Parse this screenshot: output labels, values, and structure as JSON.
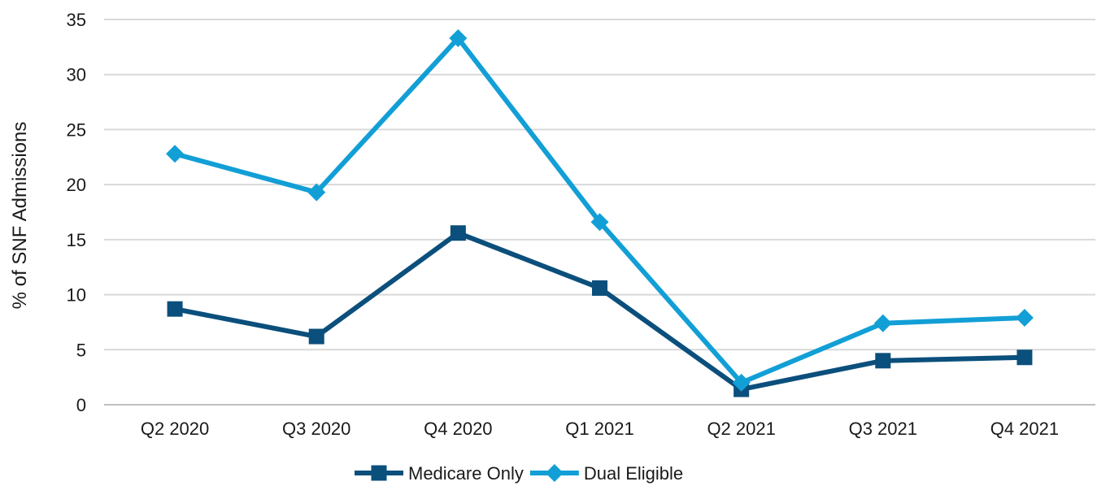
{
  "chart_data": {
    "type": "line",
    "title": "",
    "xlabel": "",
    "ylabel": "% of SNF Admissions",
    "categories": [
      "Q2 2020",
      "Q3 2020",
      "Q4 2020",
      "Q1 2021",
      "Q2 2021",
      "Q3 2021",
      "Q4 2021"
    ],
    "ylim": [
      0,
      35
    ],
    "yticks": [
      0,
      5,
      10,
      15,
      20,
      25,
      30,
      35
    ],
    "grid": true,
    "legend_position": "bottom",
    "series": [
      {
        "name": "Medicare Only",
        "values": [
          8.7,
          6.2,
          15.6,
          10.6,
          1.4,
          4.0,
          4.3
        ],
        "color": "#0b4f7c",
        "marker": "square"
      },
      {
        "name": "Dual Eligible",
        "values": [
          22.8,
          19.3,
          33.3,
          16.6,
          2.0,
          7.4,
          7.9
        ],
        "color": "#129fd6",
        "marker": "diamond"
      }
    ]
  }
}
